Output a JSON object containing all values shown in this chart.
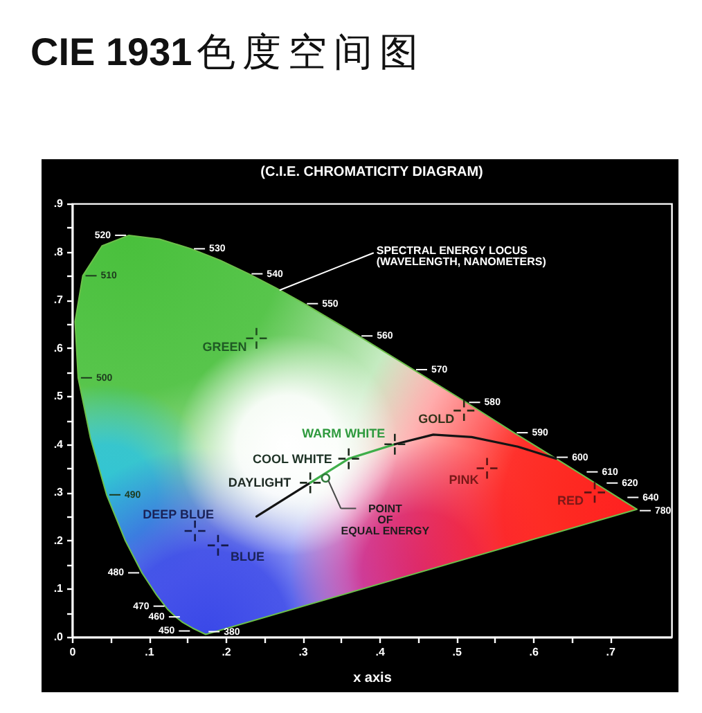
{
  "chart_data": {
    "type": "scatter",
    "title": "CIE 1931色度空间图",
    "subtitle": "(C.I.E. CHROMATICITY DIAGRAM)",
    "xlabel": "x axis",
    "xlim": [
      0,
      0.78
    ],
    "ylim": [
      0,
      0.9
    ],
    "xticks": [
      0,
      {
        "value": 0.05,
        "label": null
      },
      {
        "value": 0.1,
        "label": ".1"
      },
      {
        "value": 0.15,
        "label": null
      },
      {
        "value": 0.2,
        "label": ".2"
      },
      {
        "value": 0.25,
        "label": null
      },
      {
        "value": 0.3,
        "label": ".3"
      },
      {
        "value": 0.35,
        "label": null
      },
      {
        "value": 0.4,
        "label": ".4"
      },
      {
        "value": 0.45,
        "label": null
      },
      {
        "value": 0.5,
        "label": ".5"
      },
      {
        "value": 0.55,
        "label": null
      },
      {
        "value": 0.6,
        "label": ".6"
      },
      {
        "value": 0.65,
        "label": null
      },
      {
        "value": 0.7,
        "label": ".7"
      }
    ],
    "yticks": [
      {
        "value": 0,
        "label": ".0"
      },
      {
        "value": 0.05,
        "label": null
      },
      {
        "value": 0.1,
        "label": ".1"
      },
      {
        "value": 0.15,
        "label": null
      },
      {
        "value": 0.2,
        "label": ".2"
      },
      {
        "value": 0.25,
        "label": null
      },
      {
        "value": 0.3,
        "label": ".3"
      },
      {
        "value": 0.35,
        "label": null
      },
      {
        "value": 0.4,
        "label": ".4"
      },
      {
        "value": 0.45,
        "label": null
      },
      {
        "value": 0.5,
        "label": ".5"
      },
      {
        "value": 0.55,
        "label": null
      },
      {
        "value": 0.6,
        "label": ".6"
      },
      {
        "value": 0.65,
        "label": null
      },
      {
        "value": 0.7,
        "label": ".7"
      },
      {
        "value": 0.75,
        "label": null
      },
      {
        "value": 0.8,
        "label": ".8"
      },
      {
        "value": 0.85,
        "label": null
      },
      {
        "value": 0.9,
        "label": ".9"
      }
    ],
    "series": [
      {
        "type": "area",
        "color": "#6cc04a",
        "x": [
          0.174,
          0.157,
          0.144,
          0.136,
          0.124,
          0.11,
          0.091,
          0.069,
          0.045,
          0.024,
          0.008,
          0.004,
          0.014,
          0.039,
          0.074,
          0.114,
          0.155,
          0.193,
          0.23,
          0.266,
          0.302,
          0.373,
          0.444,
          0.513,
          0.575,
          0.627,
          0.666,
          0.692,
          0.719,
          0.735
        ],
        "values": [
          0.005,
          0.018,
          0.03,
          0.04,
          0.058,
          0.087,
          0.133,
          0.201,
          0.295,
          0.413,
          0.538,
          0.655,
          0.75,
          0.812,
          0.834,
          0.826,
          0.806,
          0.782,
          0.754,
          0.724,
          0.692,
          0.625,
          0.555,
          0.487,
          0.424,
          0.373,
          0.334,
          0.308,
          0.281,
          0.265
        ]
      },
      {
        "type": "line",
        "color": "#141414",
        "x": [
          0.24,
          0.31
        ],
        "values": [
          0.25,
          0.32
        ]
      },
      {
        "type": "line",
        "color": "#3fae4a",
        "x": [
          0.31,
          0.36,
          0.42
        ],
        "values": [
          0.32,
          0.37,
          0.4
        ]
      },
      {
        "type": "line",
        "color": "#141414",
        "x": [
          0.42,
          0.47,
          0.52,
          0.58,
          0.63
        ],
        "values": [
          0.4,
          0.42,
          0.415,
          0.395,
          0.37
        ]
      },
      {
        "type": "scatter",
        "marker": "cross",
        "x": [
          0.24,
          0.51,
          0.42,
          0.36,
          0.31,
          0.54,
          0.68,
          0.16,
          0.19
        ],
        "values": [
          0.62,
          0.47,
          0.4,
          0.37,
          0.32,
          0.35,
          0.3,
          0.22,
          0.19
        ],
        "colors": [
          "#1f4f1f",
          "#2b2b14",
          "#1e2a1e",
          "#1e2a1e",
          "#1e2a1e",
          "#5a1414",
          "#5a1414",
          "#141a4a",
          "#141a4a"
        ]
      },
      {
        "type": "scatter",
        "marker": "circle",
        "color": "#2f7a3a",
        "x": [
          0.33
        ],
        "values": [
          0.33
        ]
      }
    ],
    "annotations": [
      {
        "text": "380",
        "x": 0.174,
        "y": 0.005
      },
      {
        "text": "450",
        "x": 0.157,
        "y": 0.018
      },
      {
        "text": "460",
        "x": 0.144,
        "y": 0.03
      },
      {
        "text": "470",
        "x": 0.124,
        "y": 0.058
      },
      {
        "text": "480",
        "x": 0.091,
        "y": 0.133
      },
      {
        "text": "490",
        "x": 0.045,
        "y": 0.295
      },
      {
        "text": "500",
        "x": 0.008,
        "y": 0.538
      },
      {
        "text": "510",
        "x": 0.014,
        "y": 0.75
      },
      {
        "text": "520",
        "x": 0.074,
        "y": 0.834
      },
      {
        "text": "530",
        "x": 0.155,
        "y": 0.806
      },
      {
        "text": "540",
        "x": 0.23,
        "y": 0.754
      },
      {
        "text": "550",
        "x": 0.302,
        "y": 0.692
      },
      {
        "text": "560",
        "x": 0.373,
        "y": 0.625
      },
      {
        "text": "570",
        "x": 0.444,
        "y": 0.555
      },
      {
        "text": "580",
        "x": 0.513,
        "y": 0.487
      },
      {
        "text": "590",
        "x": 0.575,
        "y": 0.424
      },
      {
        "text": "600",
        "x": 0.627,
        "y": 0.373
      },
      {
        "text": "610",
        "x": 0.666,
        "y": 0.334
      },
      {
        "text": "620",
        "x": 0.692,
        "y": 0.308
      },
      {
        "text": "640",
        "x": 0.719,
        "y": 0.281
      },
      {
        "text": "780",
        "x": 0.735,
        "y": 0.265
      },
      {
        "text": "GREEN",
        "x": 0.24,
        "y": 0.62
      },
      {
        "text": "GOLD",
        "x": 0.51,
        "y": 0.47
      },
      {
        "text": "WARM WHITE",
        "x": 0.42,
        "y": 0.4
      },
      {
        "text": "COOL WHITE",
        "x": 0.36,
        "y": 0.37
      },
      {
        "text": "DAYLIGHT",
        "x": 0.31,
        "y": 0.32
      },
      {
        "text": "PINK",
        "x": 0.54,
        "y": 0.35
      },
      {
        "text": "RED",
        "x": 0.68,
        "y": 0.3
      },
      {
        "text": "DEEP BLUE",
        "x": 0.16,
        "y": 0.22
      },
      {
        "text": "BLUE",
        "x": 0.19,
        "y": 0.19
      },
      {
        "text": "SPECTRAL ENERGY LOCUS\n(WAVELENGTH, NANOMETERS)",
        "x": 0.27,
        "y": 0.72
      },
      {
        "text": "POINT\nOF\nEQUAL ENERGY",
        "x": 0.33,
        "y": 0.33
      }
    ]
  }
}
